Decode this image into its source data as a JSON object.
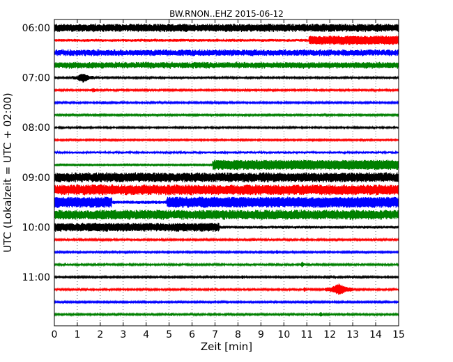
{
  "chart_data": {
    "type": "line",
    "title": "BW.RNON..EHZ 2015-06-12",
    "xlabel": "Zeit  [min]",
    "ylabel": "UTC (Lokalzeit = UTC + 02:00)",
    "xlim": [
      0,
      15
    ],
    "x_ticks": [
      "0",
      "1",
      "2",
      "3",
      "4",
      "5",
      "6",
      "7",
      "8",
      "9",
      "10",
      "11",
      "12",
      "13",
      "14",
      "15"
    ],
    "y_ticks": [
      "06:00",
      "07:00",
      "08:00",
      "09:00",
      "10:00",
      "11:00"
    ],
    "grid": "vertical dotted",
    "colors": [
      "#000000",
      "#ff0000",
      "#0000ff",
      "#008000"
    ],
    "series": [
      {
        "color": "#000000",
        "amplitude": 4.5,
        "noise": 0.7
      },
      {
        "color": "#ff0000",
        "amplitude": 1.5,
        "noise": 0.4,
        "events": [
          {
            "start": 11.1,
            "end": 15,
            "amp": 5.5
          }
        ]
      },
      {
        "color": "#0000ff",
        "amplitude": 3.5,
        "noise": 0.8
      },
      {
        "color": "#008000",
        "amplitude": 3.5,
        "noise": 0.9
      },
      {
        "color": "#000000",
        "amplitude": 1.0,
        "noise": 0.4,
        "events": [
          {
            "start": 0.8,
            "end": 1.7,
            "amp": 6
          }
        ]
      },
      {
        "color": "#ff0000",
        "amplitude": 0.9,
        "noise": 0.3,
        "events": [
          {
            "start": 1.5,
            "end": 1.9,
            "amp": 3
          }
        ]
      },
      {
        "color": "#0000ff",
        "amplitude": 0.9,
        "noise": 0.3,
        "events": [
          {
            "start": 2.0,
            "end": 2.3,
            "amp": 2.5
          }
        ]
      },
      {
        "color": "#008000",
        "amplitude": 0.9,
        "noise": 0.3
      },
      {
        "color": "#000000",
        "amplitude": 0.8,
        "noise": 0.3
      },
      {
        "color": "#ff0000",
        "amplitude": 0.8,
        "noise": 0.3
      },
      {
        "color": "#0000ff",
        "amplitude": 1.2,
        "noise": 0.3
      },
      {
        "color": "#008000",
        "amplitude": 1.5,
        "noise": 0.3,
        "events": [
          {
            "start": 6.9,
            "end": 15,
            "amp": 6
          }
        ]
      },
      {
        "color": "#000000",
        "amplitude": 5.5,
        "noise": 0.6
      },
      {
        "color": "#ff0000",
        "amplitude": 6.0,
        "noise": 0.5
      },
      {
        "color": "#0000ff",
        "amplitude": 1.8,
        "noise": 0.5,
        "events": [
          {
            "start": 0,
            "end": 2.5,
            "amp": 6.5
          },
          {
            "start": 4.9,
            "end": 15,
            "amp": 6.5
          }
        ]
      },
      {
        "color": "#008000",
        "amplitude": 5.5,
        "noise": 0.6
      },
      {
        "color": "#000000",
        "amplitude": 5.0,
        "noise": 0.6,
        "events": [
          {
            "start": 7.2,
            "end": 15,
            "amp": 1.5,
            "override": true
          }
        ]
      },
      {
        "color": "#ff0000",
        "amplitude": 0.9,
        "noise": 0.3,
        "events": [
          {
            "start": 8.6,
            "end": 8.8,
            "amp": 2.5
          }
        ]
      },
      {
        "color": "#0000ff",
        "amplitude": 0.9,
        "noise": 0.3,
        "events": [
          {
            "start": 9.6,
            "end": 9.8,
            "amp": 3
          }
        ]
      },
      {
        "color": "#008000",
        "amplitude": 0.9,
        "noise": 0.3,
        "events": [
          {
            "start": 10.7,
            "end": 10.9,
            "amp": 4
          }
        ]
      },
      {
        "color": "#000000",
        "amplitude": 0.9,
        "noise": 0.3,
        "events": [
          {
            "start": 8.1,
            "end": 8.3,
            "amp": 2.5
          }
        ]
      },
      {
        "color": "#ff0000",
        "amplitude": 0.9,
        "noise": 0.3,
        "events": [
          {
            "start": 10.8,
            "end": 11.0,
            "amp": 3
          },
          {
            "start": 11.8,
            "end": 13.0,
            "amp": 7
          }
        ]
      },
      {
        "color": "#0000ff",
        "amplitude": 0.9,
        "noise": 0.3
      },
      {
        "color": "#008000",
        "amplitude": 0.9,
        "noise": 0.3,
        "events": [
          {
            "start": 5.0,
            "end": 5.2,
            "amp": 2.5
          },
          {
            "start": 11.5,
            "end": 11.7,
            "amp": 4
          }
        ]
      }
    ]
  }
}
